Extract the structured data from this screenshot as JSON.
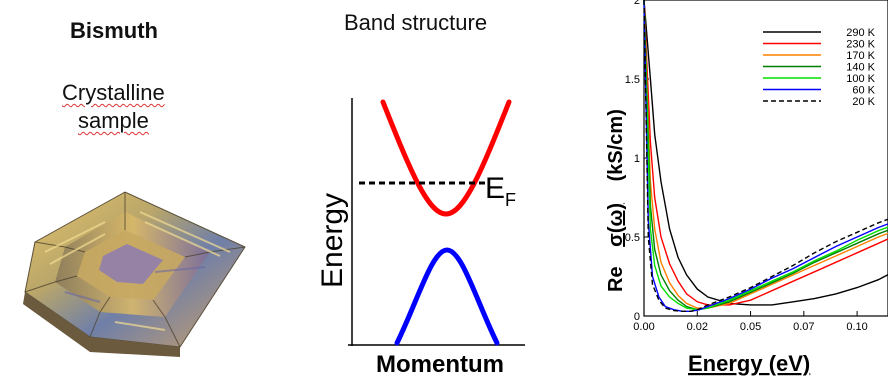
{
  "left_panel": {
    "title": "Bismuth",
    "subtitle_line1": "Crystalline",
    "subtitle_line2": "sample"
  },
  "band_panel": {
    "title": "Band structure",
    "y_label": "Energy",
    "x_label": "Momentum",
    "fermi_label": "E",
    "fermi_sub": "F",
    "conduction_color": "#ff0000",
    "valence_color": "#0000ff"
  },
  "conductivity_panel": {
    "y_label_parts": [
      "Re",
      "σ(ω)",
      "(kS/cm)"
    ],
    "x_label": "Energy (eV)",
    "y_ticks": [
      "0",
      "0.5",
      "1",
      "1.5",
      "2"
    ],
    "x_ticks": [
      "0.00",
      "0.02",
      "0.05",
      "0.07",
      "0.10"
    ],
    "legend": [
      {
        "label": "290 K",
        "color": "#000000",
        "dash": false
      },
      {
        "label": "230 K",
        "color": "#ff0000",
        "dash": false
      },
      {
        "label": "170 K",
        "color": "#ff8000",
        "dash": false
      },
      {
        "label": "140 K",
        "color": "#008000",
        "dash": false
      },
      {
        "label": "100 K",
        "color": "#00e000",
        "dash": false
      },
      {
        "label": "60 K",
        "color": "#0000ff",
        "dash": false
      },
      {
        "label": "20 K",
        "color": "#000000",
        "dash": true
      }
    ]
  },
  "chart_data": {
    "type": "line",
    "xlabel": "Energy (eV)",
    "ylabel": "Re σ(ω) (kS/cm)",
    "xlim": [
      0,
      0.12
    ],
    "ylim": [
      0,
      2
    ],
    "series": [
      {
        "name": "290 K",
        "x": [
          0.0,
          0.003,
          0.005,
          0.008,
          0.012,
          0.016,
          0.02,
          0.025,
          0.03,
          0.04,
          0.05,
          0.06,
          0.07,
          0.08,
          0.09,
          0.1,
          0.11,
          0.12
        ],
        "values": [
          2.0,
          1.5,
          1.15,
          0.85,
          0.55,
          0.37,
          0.26,
          0.17,
          0.12,
          0.08,
          0.07,
          0.07,
          0.09,
          0.11,
          0.14,
          0.18,
          0.23,
          0.3
        ]
      },
      {
        "name": "230 K",
        "x": [
          0.0,
          0.003,
          0.005,
          0.008,
          0.012,
          0.016,
          0.02,
          0.025,
          0.03,
          0.04,
          0.05,
          0.06,
          0.07,
          0.08,
          0.09,
          0.1,
          0.11,
          0.12
        ],
        "values": [
          2.0,
          1.1,
          0.75,
          0.5,
          0.33,
          0.22,
          0.14,
          0.09,
          0.07,
          0.07,
          0.1,
          0.16,
          0.22,
          0.28,
          0.34,
          0.4,
          0.46,
          0.52
        ]
      },
      {
        "name": "170 K",
        "x": [
          0.0,
          0.003,
          0.005,
          0.008,
          0.012,
          0.016,
          0.02,
          0.025,
          0.03,
          0.04,
          0.05,
          0.06,
          0.07,
          0.08,
          0.09,
          0.1,
          0.11,
          0.12
        ],
        "values": [
          2.0,
          0.85,
          0.55,
          0.34,
          0.21,
          0.13,
          0.08,
          0.05,
          0.05,
          0.08,
          0.14,
          0.2,
          0.26,
          0.32,
          0.38,
          0.44,
          0.5,
          0.55
        ]
      },
      {
        "name": "140 K",
        "x": [
          0.0,
          0.003,
          0.005,
          0.008,
          0.012,
          0.016,
          0.02,
          0.025,
          0.03,
          0.04,
          0.05,
          0.06,
          0.07,
          0.08,
          0.09,
          0.1,
          0.11,
          0.12
        ],
        "values": [
          2.0,
          0.7,
          0.42,
          0.26,
          0.16,
          0.1,
          0.06,
          0.04,
          0.05,
          0.09,
          0.15,
          0.21,
          0.27,
          0.34,
          0.4,
          0.46,
          0.52,
          0.57
        ]
      },
      {
        "name": "100 K",
        "x": [
          0.0,
          0.003,
          0.005,
          0.008,
          0.012,
          0.016,
          0.02,
          0.025,
          0.03,
          0.04,
          0.05,
          0.06,
          0.07,
          0.08,
          0.09,
          0.1,
          0.11,
          0.12
        ],
        "values": [
          2.0,
          0.55,
          0.32,
          0.19,
          0.12,
          0.08,
          0.05,
          0.04,
          0.05,
          0.1,
          0.16,
          0.22,
          0.28,
          0.35,
          0.41,
          0.48,
          0.54,
          0.59
        ]
      },
      {
        "name": "60 K",
        "x": [
          0.0,
          0.002,
          0.004,
          0.007,
          0.01,
          0.014,
          0.018,
          0.022,
          0.026,
          0.03,
          0.04,
          0.05,
          0.06,
          0.07,
          0.08,
          0.09,
          0.1,
          0.11,
          0.12
        ],
        "values": [
          2.0,
          0.6,
          0.25,
          0.12,
          0.06,
          0.04,
          0.03,
          0.03,
          0.04,
          0.06,
          0.11,
          0.17,
          0.24,
          0.3,
          0.37,
          0.44,
          0.5,
          0.56,
          0.61
        ]
      },
      {
        "name": "20 K",
        "x": [
          0.0,
          0.002,
          0.004,
          0.007,
          0.01,
          0.014,
          0.018,
          0.022,
          0.026,
          0.03,
          0.04,
          0.05,
          0.06,
          0.07,
          0.08,
          0.09,
          0.1,
          0.11,
          0.12
        ],
        "values": [
          2.0,
          0.5,
          0.2,
          0.1,
          0.05,
          0.035,
          0.03,
          0.03,
          0.045,
          0.07,
          0.12,
          0.18,
          0.25,
          0.32,
          0.4,
          0.47,
          0.53,
          0.59,
          0.64
        ]
      }
    ]
  }
}
